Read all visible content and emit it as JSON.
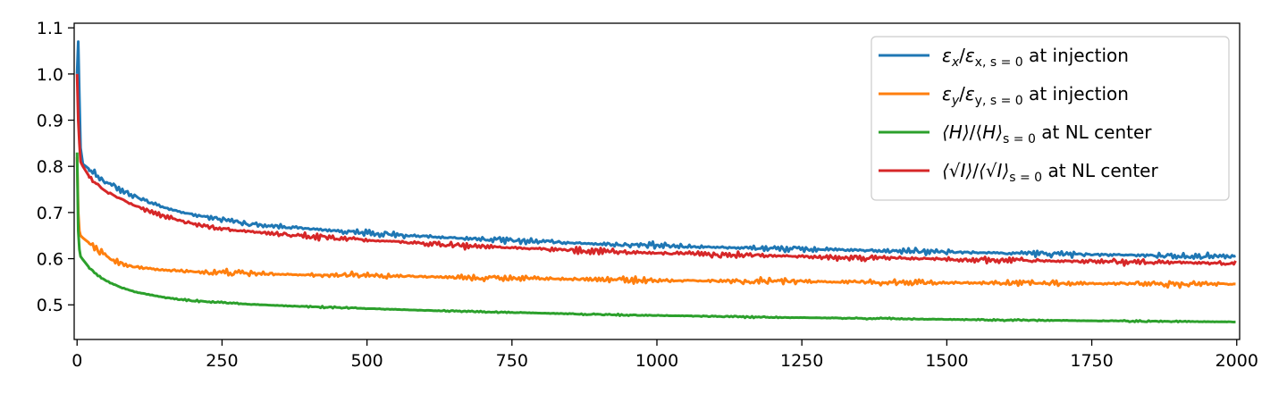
{
  "chart_data": {
    "type": "line",
    "title": "",
    "xlabel": "",
    "ylabel": "",
    "xlim": [
      -5,
      2005
    ],
    "ylim": [
      0.425,
      1.11
    ],
    "xticks": [
      0,
      250,
      500,
      750,
      1000,
      1250,
      1500,
      1750,
      2000
    ],
    "yticks": [
      0.5,
      0.6,
      0.7,
      0.8,
      0.9,
      1.0,
      1.1
    ],
    "grid": false,
    "legend_position": "top-right",
    "series": [
      {
        "name": "εx/εx, s = 0 at injection",
        "legend": {
          "a": "ε",
          "a_sub": "x",
          "slash": "/",
          "b": "ε",
          "b_sub": "x, s = 0",
          "suffix": " at injection"
        },
        "color": "#1f77b4",
        "noise": 0.003,
        "x": [
          0,
          2,
          4,
          6,
          10,
          15,
          20,
          30,
          40,
          50,
          75,
          100,
          150,
          200,
          250,
          300,
          400,
          500,
          600,
          700,
          800,
          900,
          1000,
          1200,
          1400,
          1600,
          1800,
          2000
        ],
        "y": [
          1.0,
          1.07,
          0.95,
          0.84,
          0.805,
          0.8,
          0.795,
          0.785,
          0.775,
          0.765,
          0.75,
          0.735,
          0.71,
          0.695,
          0.685,
          0.675,
          0.665,
          0.655,
          0.648,
          0.642,
          0.637,
          0.632,
          0.628,
          0.622,
          0.617,
          0.612,
          0.608,
          0.605
        ]
      },
      {
        "name": "εy/εy, s = 0 at injection",
        "legend": {
          "a": "ε",
          "a_sub": "y",
          "slash": "/",
          "b": "ε",
          "b_sub": "y, s = 0",
          "suffix": " at injection"
        },
        "color": "#ff7f0e",
        "noise": 0.003,
        "x": [
          0,
          2,
          4,
          6,
          10,
          15,
          20,
          30,
          40,
          50,
          75,
          100,
          150,
          200,
          250,
          300,
          400,
          500,
          600,
          700,
          800,
          900,
          1000,
          1200,
          1400,
          1600,
          1800,
          2000
        ],
        "y": [
          0.82,
          0.7,
          0.66,
          0.65,
          0.645,
          0.64,
          0.635,
          0.625,
          0.615,
          0.605,
          0.59,
          0.582,
          0.575,
          0.572,
          0.57,
          0.568,
          0.565,
          0.563,
          0.561,
          0.559,
          0.557,
          0.555,
          0.553,
          0.551,
          0.549,
          0.547,
          0.546,
          0.545
        ]
      },
      {
        "name": "⟨H⟩/⟨H⟩s = 0 at NL center",
        "legend": {
          "a": "⟨H⟩",
          "a_sub": "",
          "slash": "/⟨",
          "b": "H⟩",
          "b_sub": "s = 0",
          "suffix": " at NL center"
        },
        "color": "#2ca02c",
        "noise": 0.0008,
        "x": [
          0,
          2,
          4,
          6,
          10,
          15,
          20,
          30,
          40,
          50,
          75,
          100,
          150,
          200,
          250,
          300,
          400,
          500,
          600,
          700,
          800,
          900,
          1000,
          1200,
          1400,
          1600,
          1800,
          2000
        ],
        "y": [
          0.83,
          0.66,
          0.62,
          0.605,
          0.598,
          0.59,
          0.582,
          0.57,
          0.56,
          0.552,
          0.538,
          0.528,
          0.516,
          0.509,
          0.505,
          0.501,
          0.496,
          0.492,
          0.488,
          0.485,
          0.482,
          0.479,
          0.477,
          0.473,
          0.47,
          0.467,
          0.465,
          0.463
        ]
      },
      {
        "name": "⟨√I⟩/⟨√I⟩s = 0 at NL center",
        "legend": {
          "a": "⟨√I⟩",
          "a_sub": "",
          "slash": "/",
          "b": "⟨√I⟩",
          "b_sub": "s = 0",
          "suffix": " at NL center"
        },
        "color": "#d62728",
        "noise": 0.003,
        "x": [
          0,
          2,
          4,
          6,
          10,
          15,
          20,
          30,
          40,
          50,
          75,
          100,
          150,
          200,
          250,
          300,
          400,
          500,
          600,
          700,
          800,
          900,
          1000,
          1200,
          1400,
          1600,
          1800,
          2000
        ],
        "y": [
          1.0,
          0.9,
          0.85,
          0.81,
          0.8,
          0.79,
          0.78,
          0.765,
          0.755,
          0.745,
          0.73,
          0.715,
          0.69,
          0.675,
          0.665,
          0.658,
          0.648,
          0.64,
          0.633,
          0.626,
          0.621,
          0.616,
          0.612,
          0.606,
          0.601,
          0.597,
          0.593,
          0.59
        ]
      }
    ]
  }
}
